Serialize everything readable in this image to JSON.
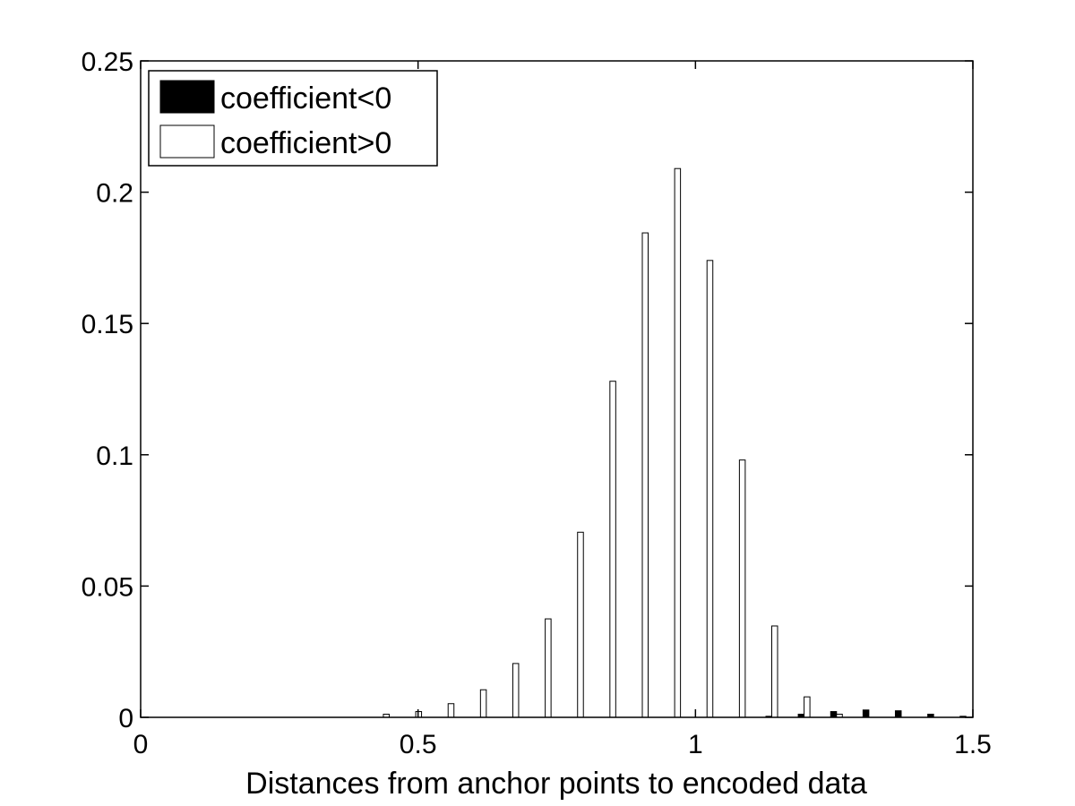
{
  "chart_data": {
    "type": "bar",
    "xlabel": "Distances from anchor points to encoded data",
    "ylabel": "",
    "title": "",
    "xlim": [
      0,
      1.5
    ],
    "ylim": [
      0,
      0.25
    ],
    "xticks": [
      0,
      0.5,
      1,
      1.5
    ],
    "xtick_labels": [
      "0",
      "0.5",
      "1",
      "1.5"
    ],
    "yticks": [
      0,
      0.05,
      0.1,
      0.15,
      0.2,
      0.25
    ],
    "ytick_labels": [
      "0",
      "0.05",
      "0.1",
      "0.15",
      "0.2",
      "0.25"
    ],
    "grid": false,
    "legend_position": "top-left",
    "x": [
      0.4375,
      0.4958,
      0.5542,
      0.6125,
      0.6708,
      0.7292,
      0.7875,
      0.8458,
      0.9042,
      0.9625,
      1.0208,
      1.0792,
      1.1375,
      1.1958,
      1.2542,
      1.3125,
      1.3708,
      1.4292,
      1.4875
    ],
    "series": [
      {
        "name": "coefficient<0",
        "color": "#000000",
        "values": [
          0,
          0,
          0,
          0,
          0,
          0,
          0,
          0,
          0,
          0,
          0,
          0,
          0.0004,
          0.0012,
          0.0022,
          0.0028,
          0.0025,
          0.0012,
          0.0004
        ]
      },
      {
        "name": "coefficient>0",
        "color": "#ffffff",
        "values": [
          0.0012,
          0.0022,
          0.0052,
          0.0105,
          0.0205,
          0.0375,
          0.0705,
          0.128,
          0.1845,
          0.209,
          0.174,
          0.098,
          0.0348,
          0.0078,
          0.0012,
          0,
          0,
          0,
          0
        ]
      }
    ]
  }
}
